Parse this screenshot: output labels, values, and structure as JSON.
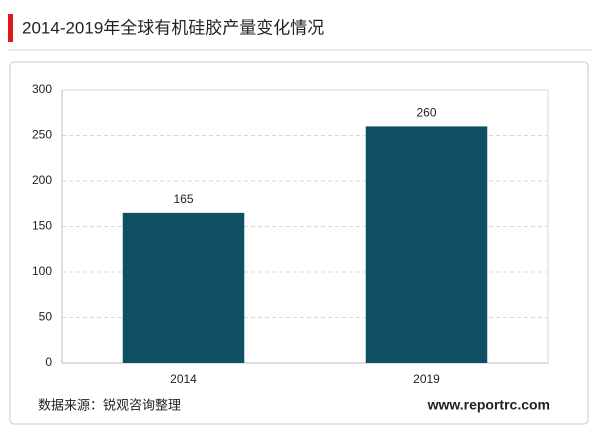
{
  "chart_data": {
    "type": "bar",
    "title": "2014-2019年全球有机硅胶产量变化情况",
    "categories": [
      "2014",
      "2019"
    ],
    "values": [
      165,
      260
    ],
    "color": "#0e4f66",
    "ylim": [
      0,
      300
    ],
    "yticks": [
      0,
      50,
      100,
      150,
      200,
      250,
      300
    ],
    "grid": true,
    "source": "数据来源：锐观咨询整理",
    "website": "www.reportrc.com"
  }
}
